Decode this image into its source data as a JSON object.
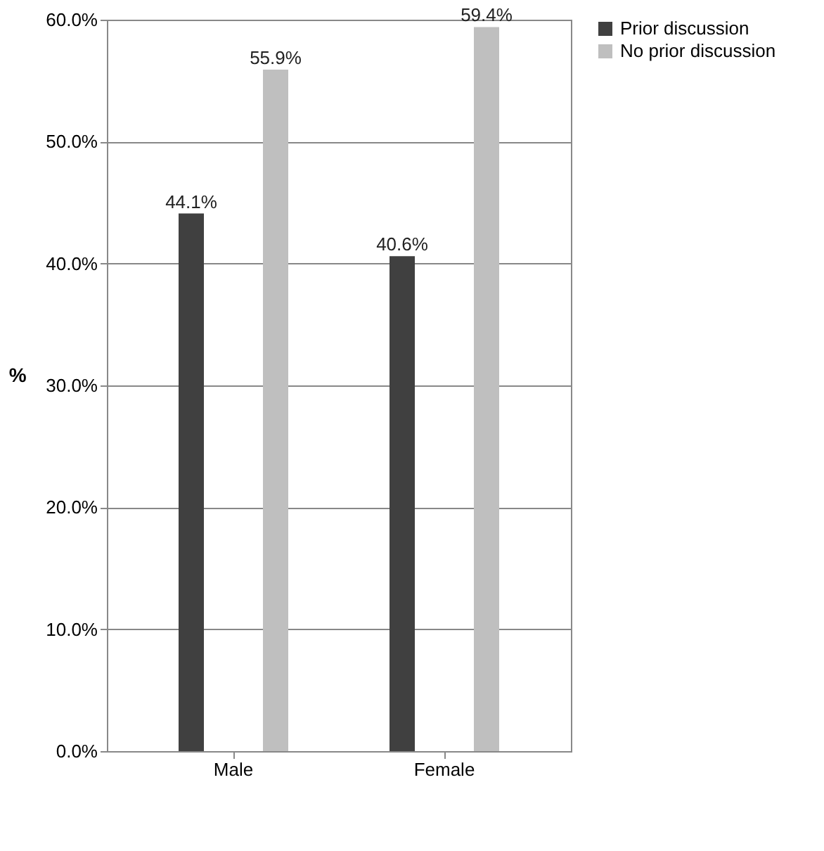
{
  "chart_data": {
    "type": "bar",
    "categories": [
      "Male",
      "Female"
    ],
    "ylabel": "%",
    "series": [
      {
        "name": "Prior discussion",
        "color": "#404040",
        "values": [
          44.1,
          40.6
        ],
        "value_labels": [
          "44.1%",
          "40.6%"
        ]
      },
      {
        "name": "No prior discussion",
        "color": "#bfbfbf",
        "values": [
          55.9,
          59.4
        ],
        "value_labels": [
          "55.9%",
          "59.4%"
        ]
      }
    ],
    "ylim": [
      0,
      60
    ],
    "yticks": [
      {
        "value": 0,
        "label": "0.0%"
      },
      {
        "value": 10,
        "label": "10.0%"
      },
      {
        "value": 20,
        "label": "20.0%"
      },
      {
        "value": 30,
        "label": "30.0%"
      },
      {
        "value": 40,
        "label": "40.0%"
      },
      {
        "value": 50,
        "label": "50.0%"
      },
      {
        "value": 60,
        "label": "60.0%"
      }
    ],
    "grid": "y",
    "legend": "right"
  }
}
